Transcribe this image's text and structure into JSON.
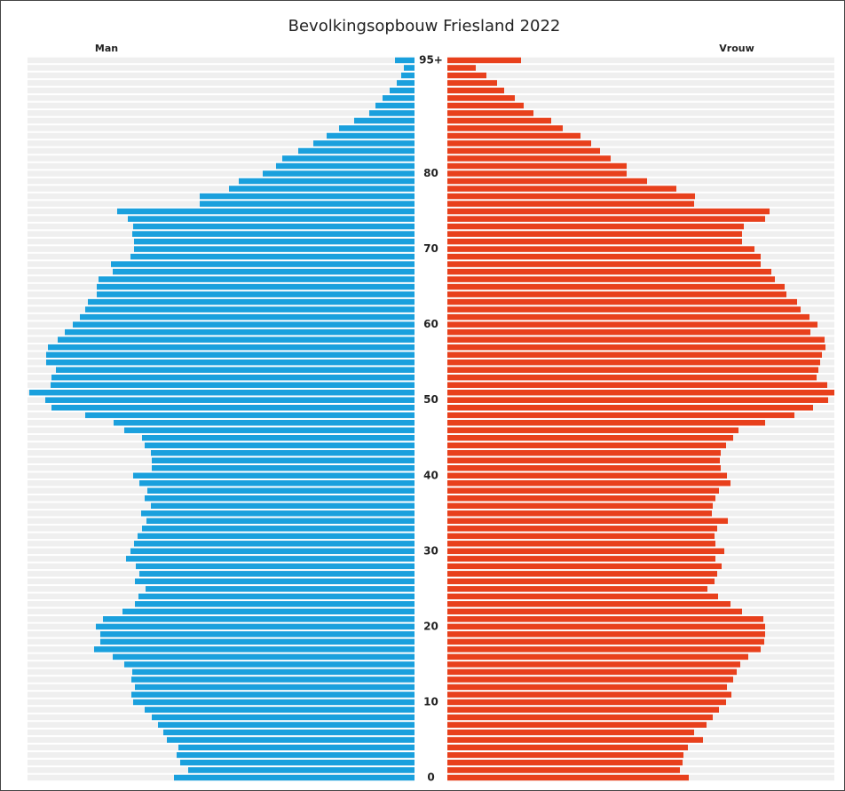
{
  "chart_data": {
    "type": "pyramid",
    "title": "Bevolkingsopbouw Friesland 2022",
    "categories": [
      "0",
      null,
      null,
      null,
      null,
      null,
      null,
      null,
      null,
      null,
      "10",
      null,
      null,
      null,
      null,
      null,
      null,
      null,
      null,
      null,
      "20",
      null,
      null,
      null,
      null,
      null,
      null,
      null,
      null,
      null,
      "30",
      null,
      null,
      null,
      null,
      null,
      null,
      null,
      null,
      null,
      "40",
      null,
      null,
      null,
      null,
      null,
      null,
      null,
      null,
      null,
      "50",
      null,
      null,
      null,
      null,
      null,
      null,
      null,
      null,
      null,
      "60",
      null,
      null,
      null,
      null,
      null,
      null,
      null,
      null,
      null,
      "70",
      null,
      null,
      null,
      null,
      null,
      null,
      null,
      null,
      null,
      "80",
      null,
      null,
      null,
      null,
      null,
      null,
      null,
      null,
      null,
      null,
      null,
      null,
      null,
      null,
      "95+"
    ],
    "series": [
      {
        "name": "Man",
        "color": "#1aa0dd",
        "values": [
          271,
          255,
          264,
          268,
          266,
          279,
          283,
          289,
          296,
          304,
          317,
          319,
          315,
          319,
          318,
          327,
          340,
          361,
          354,
          354,
          359,
          351,
          329,
          315,
          311,
          303,
          315,
          310,
          314,
          325,
          320,
          316,
          312,
          307,
          302,
          308,
          297,
          304,
          301,
          310,
          317,
          296,
          296,
          297,
          304,
          307,
          327,
          339,
          371,
          409,
          416,
          434,
          410,
          409,
          404,
          415,
          415,
          413,
          402,
          394,
          385,
          377,
          371,
          368,
          358,
          358,
          356,
          340,
          342,
          320,
          316,
          316,
          318,
          317,
          323,
          335,
          242,
          242,
          209,
          198,
          171,
          156,
          149,
          131,
          114,
          99,
          85,
          68,
          51,
          44,
          36,
          28,
          20,
          15,
          12,
          22
        ]
      },
      {
        "name": "Vrouw",
        "color": "#e8401c",
        "values": [
          272,
          262,
          265,
          266,
          271,
          288,
          278,
          292,
          299,
          306,
          314,
          320,
          315,
          322,
          326,
          330,
          339,
          353,
          357,
          358,
          358,
          356,
          332,
          319,
          305,
          293,
          301,
          304,
          309,
          302,
          312,
          302,
          301,
          304,
          316,
          298,
          299,
          302,
          306,
          319,
          315,
          308,
          307,
          308,
          314,
          322,
          328,
          358,
          391,
          412,
          429,
          436,
          428,
          416,
          418,
          420,
          422,
          426,
          425,
          409,
          417,
          408,
          398,
          394,
          382,
          380,
          369,
          365,
          353,
          353,
          346,
          332,
          332,
          334,
          358,
          363,
          278,
          279,
          258,
          225,
          202,
          202,
          184,
          172,
          162,
          150,
          130,
          117,
          97,
          86,
          76,
          64,
          56,
          44,
          32,
          83
        ]
      }
    ],
    "xlim": [
      0,
      436
    ]
  }
}
